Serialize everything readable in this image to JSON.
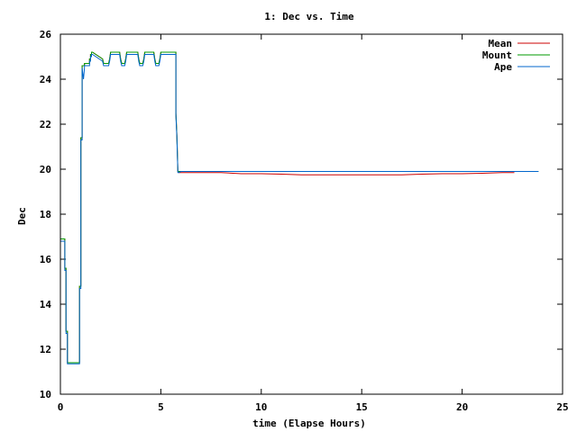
{
  "chart_data": {
    "type": "line",
    "title": "1: Dec vs. Time",
    "xlabel": "time (Elapse Hours)",
    "ylabel": "Dec",
    "xlim": [
      0,
      25
    ],
    "ylim": [
      10,
      26
    ],
    "x_ticks": [
      0,
      5,
      10,
      15,
      20,
      25
    ],
    "y_ticks": [
      10,
      12,
      14,
      16,
      18,
      20,
      22,
      24,
      26
    ],
    "grid": false,
    "legend_position": "top-right",
    "series": [
      {
        "name": "Mean",
        "color": "#cc0000",
        "x": [
          0,
          0.22,
          0.22,
          0.28,
          0.28,
          0.35,
          0.35,
          0.42,
          0.42,
          0.95,
          0.95,
          1.02,
          1.02,
          1.08,
          1.08,
          1.2,
          1.2,
          1.45,
          1.45,
          1.5,
          1.5,
          1.55,
          1.55,
          1.6,
          1.6,
          2.1,
          2.15,
          2.2,
          2.4,
          2.45,
          2.5,
          2.55,
          2.95,
          3.0,
          3.05,
          3.2,
          3.25,
          3.3,
          3.35,
          3.85,
          3.9,
          3.95,
          4.1,
          4.15,
          4.2,
          4.25,
          4.65,
          4.7,
          4.75,
          4.9,
          4.95,
          5.0,
          5.05,
          5.75,
          5.75,
          5.8,
          5.85,
          5.9,
          5.95,
          6.0,
          7,
          8,
          9,
          10,
          11,
          12,
          13,
          14,
          15,
          16,
          17,
          18,
          19,
          20,
          21,
          22,
          22.6
        ],
        "y": [
          16.9,
          16.9,
          15.6,
          15.6,
          12.8,
          12.8,
          11.4,
          11.4,
          11.4,
          11.4,
          14.8,
          14.8,
          21.4,
          21.4,
          24.6,
          24.6,
          24.7,
          24.7,
          24.9,
          24.9,
          25.1,
          25.1,
          25.2,
          25.2,
          25.2,
          24.9,
          24.7,
          24.7,
          24.7,
          24.9,
          25.2,
          25.2,
          25.2,
          24.9,
          24.7,
          24.7,
          24.9,
          25.2,
          25.2,
          25.2,
          24.9,
          24.7,
          24.7,
          24.9,
          25.2,
          25.2,
          25.2,
          24.9,
          24.7,
          24.7,
          24.9,
          25.2,
          25.2,
          25.2,
          22.5,
          21.5,
          19.9,
          19.85,
          19.85,
          19.85,
          19.85,
          19.85,
          19.8,
          19.8,
          19.78,
          19.75,
          19.75,
          19.75,
          19.75,
          19.75,
          19.75,
          19.78,
          19.8,
          19.8,
          19.82,
          19.85,
          19.85
        ]
      },
      {
        "name": "Mount",
        "color": "#009900",
        "x": [
          0,
          0.22,
          0.22,
          0.28,
          0.28,
          0.35,
          0.35,
          0.42,
          0.42,
          0.95,
          0.95,
          1.02,
          1.02,
          1.08,
          1.08,
          1.2,
          1.2,
          1.45,
          1.45,
          1.5,
          1.5,
          1.55,
          1.55,
          1.6,
          1.6,
          2.1,
          2.15,
          2.2,
          2.4,
          2.45,
          2.5,
          2.55,
          2.95,
          3.0,
          3.05,
          3.2,
          3.25,
          3.3,
          3.35,
          3.85,
          3.9,
          3.95,
          4.1,
          4.15,
          4.2,
          4.25,
          4.65,
          4.7,
          4.75,
          4.9,
          4.95,
          5.0,
          5.05,
          5.75,
          5.75,
          5.8,
          5.85,
          5.9,
          6,
          10,
          15,
          20,
          23.8
        ],
        "y": [
          16.9,
          16.9,
          15.6,
          15.6,
          12.8,
          12.8,
          11.4,
          11.4,
          11.4,
          11.4,
          14.8,
          14.8,
          21.4,
          21.4,
          24.6,
          24.6,
          24.7,
          24.7,
          24.9,
          24.9,
          25.1,
          25.1,
          25.2,
          25.2,
          25.2,
          24.9,
          24.7,
          24.7,
          24.7,
          24.9,
          25.2,
          25.2,
          25.2,
          24.9,
          24.7,
          24.7,
          24.9,
          25.2,
          25.2,
          25.2,
          24.9,
          24.7,
          24.7,
          24.9,
          25.2,
          25.2,
          25.2,
          24.9,
          24.7,
          24.7,
          24.9,
          25.2,
          25.2,
          25.2,
          22.5,
          21.5,
          19.9,
          19.9,
          19.9,
          19.9,
          19.9,
          19.9,
          19.9
        ]
      },
      {
        "name": "Ape",
        "color": "#0066cc",
        "x": [
          0,
          0.22,
          0.22,
          0.28,
          0.28,
          0.35,
          0.35,
          0.42,
          0.42,
          0.95,
          0.95,
          1.02,
          1.02,
          1.08,
          1.08,
          1.15,
          1.2,
          1.2,
          1.45,
          1.45,
          1.5,
          1.5,
          1.55,
          1.55,
          1.6,
          1.6,
          2.1,
          2.15,
          2.2,
          2.4,
          2.45,
          2.5,
          2.55,
          2.95,
          3.0,
          3.05,
          3.2,
          3.25,
          3.3,
          3.35,
          3.85,
          3.9,
          3.95,
          4.1,
          4.15,
          4.2,
          4.25,
          4.65,
          4.7,
          4.75,
          4.9,
          4.95,
          5.0,
          5.05,
          5.75,
          5.75,
          5.8,
          5.85,
          5.9,
          6,
          10,
          15,
          20,
          23.8
        ],
        "y": [
          16.8,
          16.8,
          15.5,
          15.5,
          12.7,
          12.7,
          11.35,
          11.35,
          11.35,
          11.35,
          14.7,
          14.7,
          21.3,
          21.3,
          24.5,
          24.0,
          24.5,
          24.6,
          24.6,
          24.8,
          24.8,
          25.0,
          25.0,
          25.1,
          25.1,
          25.1,
          24.8,
          24.6,
          24.6,
          24.6,
          24.8,
          25.1,
          25.1,
          25.1,
          24.8,
          24.6,
          24.6,
          24.8,
          25.1,
          25.1,
          25.1,
          24.8,
          24.6,
          24.6,
          24.8,
          25.1,
          25.1,
          25.1,
          24.8,
          24.6,
          24.6,
          24.8,
          25.1,
          25.1,
          25.1,
          22.4,
          21.4,
          19.85,
          19.85,
          19.9,
          19.9,
          19.9,
          19.9,
          19.9
        ]
      }
    ]
  }
}
